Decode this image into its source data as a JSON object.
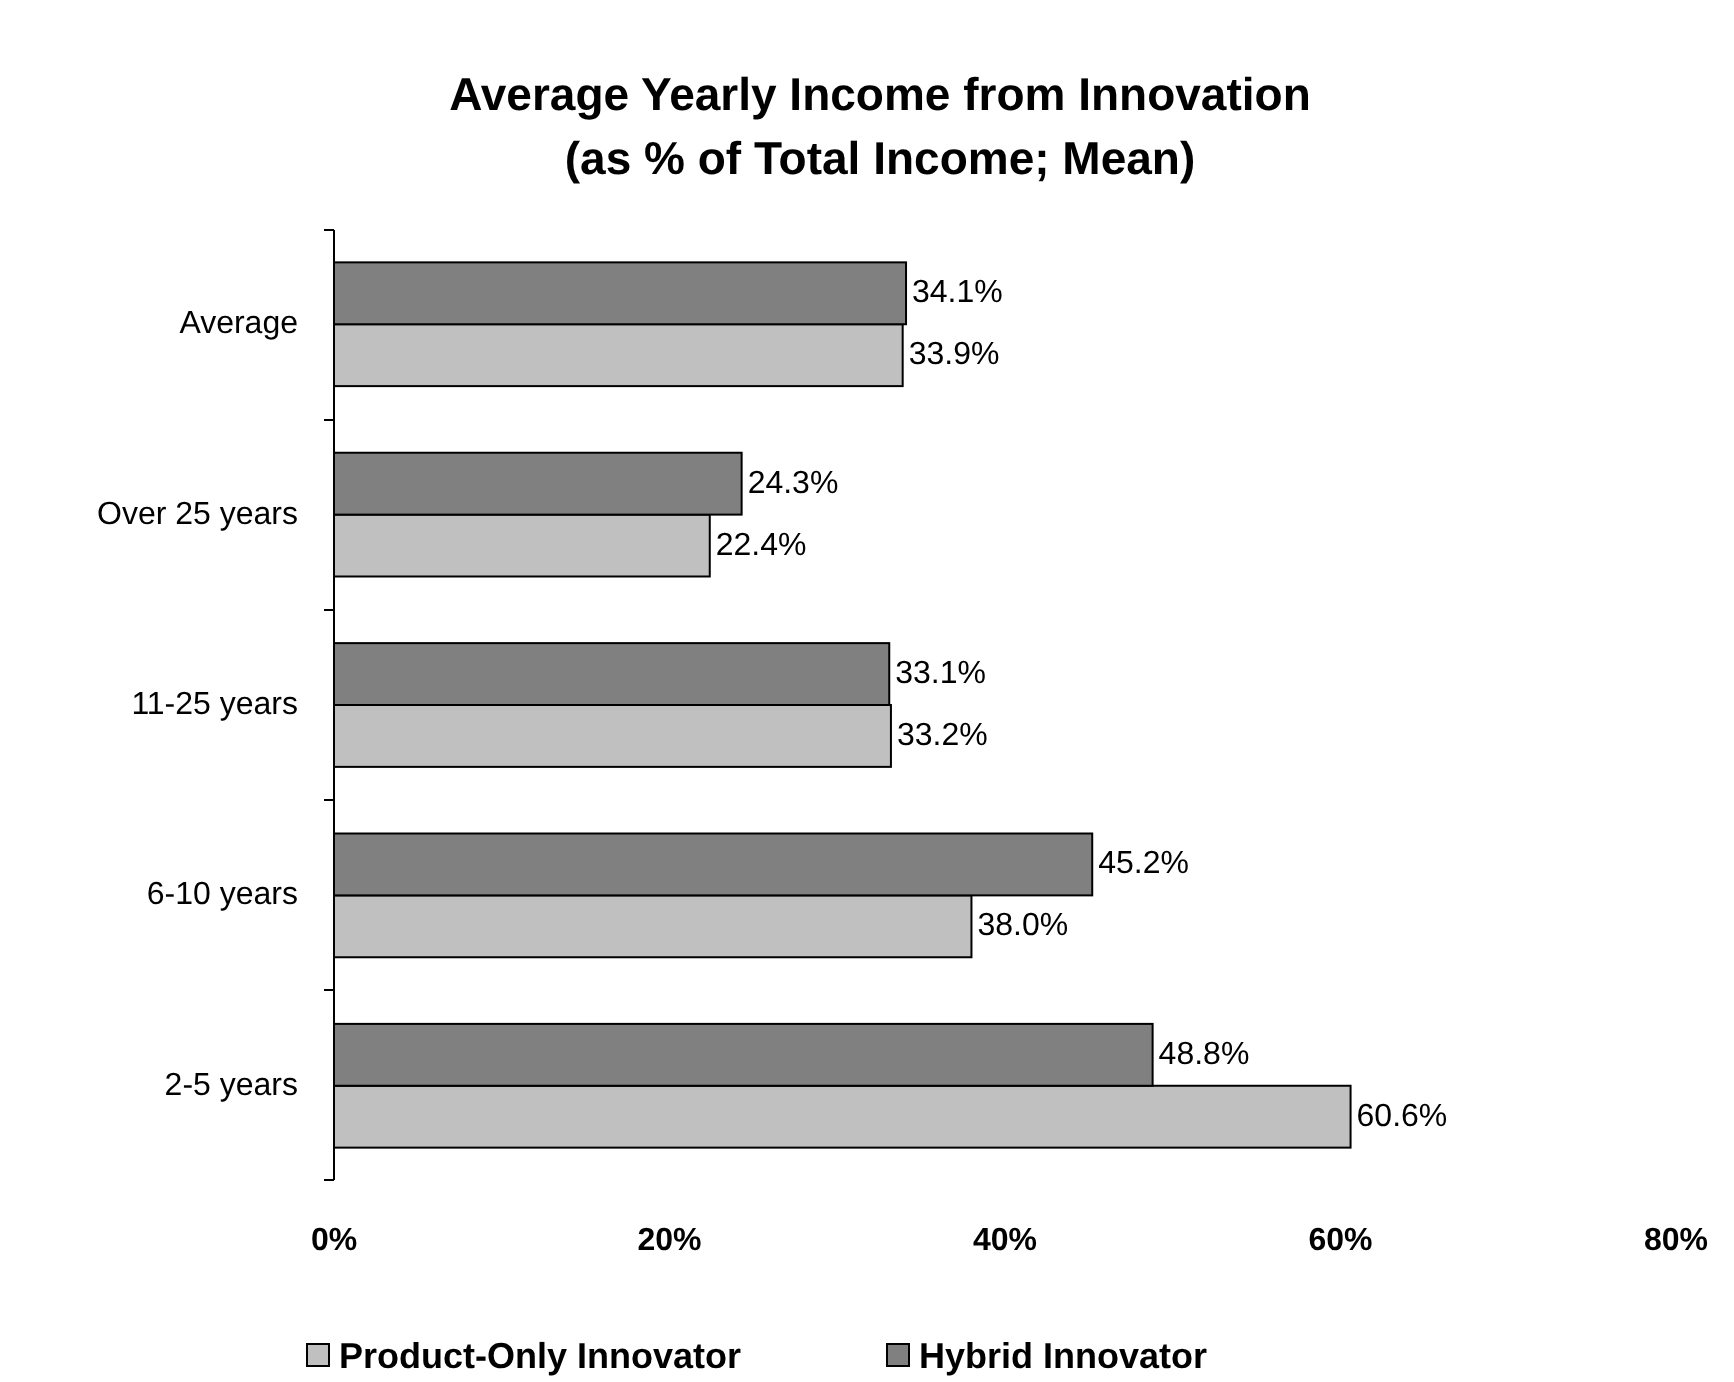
{
  "chart_data": {
    "type": "bar",
    "orientation": "horizontal",
    "title": "Average Yearly Income from Innovation\n(as % of Total Income; Mean)",
    "categories": [
      "Average",
      "Over 25 years",
      "11-25 years",
      "6-10 years",
      "2-5 years"
    ],
    "series": [
      {
        "name": "Product-Only Innovator",
        "color": "#c0c0c0",
        "values": [
          33.9,
          22.4,
          33.2,
          38.0,
          60.6
        ],
        "value_labels": [
          "33.9%",
          "22.4%",
          "33.2%",
          "38.0%",
          "60.6%"
        ]
      },
      {
        "name": "Hybrid Innovator",
        "color": "#808080",
        "values": [
          34.1,
          24.3,
          33.1,
          45.2,
          48.8
        ],
        "value_labels": [
          "34.1%",
          "24.3%",
          "33.1%",
          "45.2%",
          "48.8%"
        ]
      }
    ],
    "xlim": [
      0,
      80
    ],
    "xticks": [
      {
        "value": 0,
        "label": "0%"
      },
      {
        "value": 20,
        "label": "20%"
      },
      {
        "value": 40,
        "label": "40%"
      },
      {
        "value": 60,
        "label": "60%"
      },
      {
        "value": 80,
        "label": "80%"
      }
    ],
    "legend": "bottom",
    "grid": false
  }
}
